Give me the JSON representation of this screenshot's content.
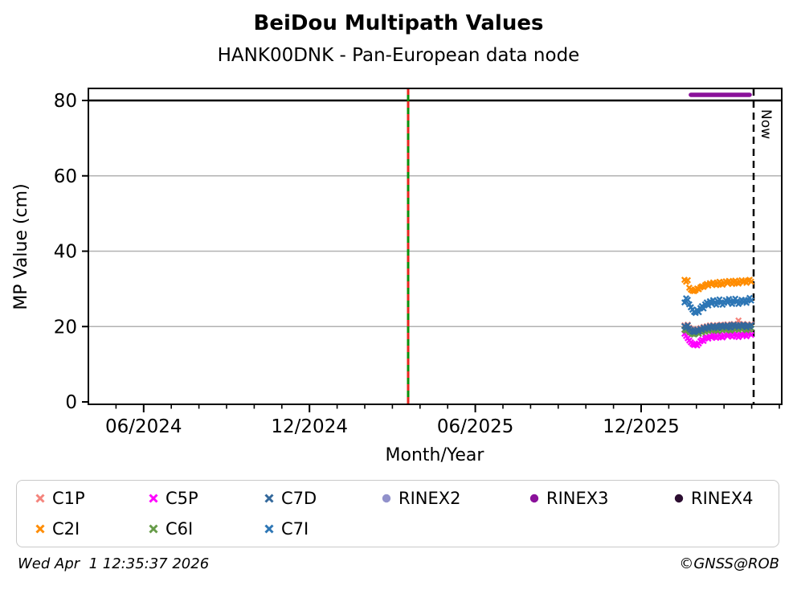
{
  "title": "BeiDou Multipath Values",
  "subtitle": "HANK00DNK - Pan-European data node",
  "now_label": "Now",
  "footer": {
    "timestamp": "Wed Apr  1 12:35:37 2026",
    "credit": "©GNSS@ROB"
  },
  "colors": {
    "grid": "#b2b2b2",
    "spine": "#000000",
    "threshold": "#000000",
    "vertical_marker_green": "#0a8f0a",
    "vertical_marker_red": "#e8251f",
    "now_line": "#000000"
  },
  "legend": {
    "items": [
      {
        "label": "C1P",
        "marker": "x",
        "color": "#f4847c"
      },
      {
        "label": "C5P",
        "marker": "x",
        "color": "#ff00ff"
      },
      {
        "label": "C7D",
        "marker": "x",
        "color": "#33689b"
      },
      {
        "label": "RINEX2",
        "marker": "circle",
        "color": "#9191cb"
      },
      {
        "label": "RINEX3",
        "marker": "circle",
        "color": "#8a119a"
      },
      {
        "label": "RINEX4",
        "marker": "circle",
        "color": "#2c0e31"
      },
      {
        "label": "C2I",
        "marker": "x",
        "color": "#ff8c00"
      },
      {
        "label": "C6I",
        "marker": "x",
        "color": "#669b48"
      },
      {
        "label": "C7I",
        "marker": "x",
        "color": "#2d76b5"
      }
    ]
  },
  "chart_data": {
    "type": "scatter",
    "title": "BeiDou Multipath Values",
    "subtitle": "HANK00DNK - Pan-European data node",
    "xlabel": "Month/Year",
    "ylabel": "MP Value (cm)",
    "ylim": [
      0,
      83
    ],
    "y_ticks": [
      0,
      20,
      40,
      60,
      80
    ],
    "grid_y": [
      20,
      40,
      60
    ],
    "threshold_line_y": 80,
    "x_ticks_major": [
      {
        "label": "06/2024",
        "month_index": 2
      },
      {
        "label": "12/2024",
        "month_index": 8
      },
      {
        "label": "06/2025",
        "month_index": 14
      },
      {
        "label": "12/2025",
        "month_index": 20
      }
    ],
    "x_axis_start_month": "04/2024",
    "x_minor_tick_months": [
      1,
      2,
      3,
      4,
      5,
      6,
      7,
      8,
      9,
      10,
      11,
      12,
      13,
      14,
      15,
      16,
      17,
      18,
      19,
      20,
      21,
      22,
      23,
      24,
      25
    ],
    "vertical_marker_month_index": 11.57,
    "vertical_marker_date_est": "2025-03-18",
    "now_line_month_index": 24.07,
    "now_date": "2026-04-01",
    "series_start_date": "2026-02-18",
    "series_day_step": 1,
    "series": [
      {
        "name": "C1P",
        "marker": "x",
        "color": "#f4847c",
        "values": [
          20.3,
          19.9,
          20.5,
          19.7,
          19.3,
          18.9,
          18.7,
          19.0,
          19.4,
          18.9,
          19.6,
          19.3,
          19.9,
          19.6,
          20.1,
          19.7,
          20.3,
          19.9,
          20.4,
          20.0,
          20.2,
          19.8,
          20.3,
          20.5,
          20.0,
          20.4,
          20.1,
          20.6,
          20.2,
          19.9,
          20.4,
          20.7,
          20.2,
          20.5,
          21.6,
          20.6,
          20.3,
          20.7,
          20.4,
          20.0,
          20.5,
          20.2,
          20.6
        ]
      },
      {
        "name": "C2I",
        "marker": "x",
        "color": "#ff8c00",
        "values": [
          32.4,
          31.9,
          32.3,
          30.3,
          29.8,
          29.5,
          29.4,
          29.7,
          30.1,
          29.9,
          30.4,
          30.7,
          30.5,
          31.0,
          31.3,
          30.9,
          31.5,
          31.2,
          31.7,
          31.3,
          31.0,
          31.5,
          31.9,
          31.4,
          31.1,
          31.6,
          32.0,
          31.5,
          32.1,
          31.7,
          31.3,
          31.8,
          32.2,
          31.7,
          31.4,
          31.9,
          32.3,
          31.8,
          32.1,
          31.6,
          32.2,
          32.4,
          31.9
        ]
      },
      {
        "name": "C5P",
        "marker": "x",
        "color": "#ff00ff",
        "values": [
          18.1,
          17.5,
          16.9,
          16.3,
          15.8,
          15.4,
          15.1,
          15.3,
          15.0,
          15.5,
          16.1,
          16.5,
          16.2,
          16.9,
          17.2,
          16.8,
          17.4,
          17.1,
          17.7,
          17.3,
          17.0,
          17.5,
          17.9,
          17.4,
          17.1,
          17.6,
          18.0,
          17.5,
          18.1,
          17.7,
          17.3,
          17.8,
          18.2,
          17.6,
          17.2,
          17.7,
          18.1,
          17.6,
          17.9,
          17.4,
          18.0,
          18.3,
          17.8
        ]
      },
      {
        "name": "C6I",
        "marker": "x",
        "color": "#669b48",
        "values": [
          19.2,
          18.9,
          19.4,
          18.7,
          18.4,
          18.1,
          17.9,
          18.2,
          18.5,
          18.1,
          18.7,
          18.4,
          18.9,
          18.6,
          19.1,
          18.8,
          19.3,
          18.9,
          19.4,
          19.0,
          19.2,
          18.8,
          19.3,
          19.5,
          19.0,
          19.4,
          19.1,
          19.6,
          19.2,
          18.9,
          19.4,
          19.7,
          19.2,
          19.5,
          19.1,
          19.6,
          19.3,
          19.7,
          19.4,
          19.0,
          19.5,
          19.2,
          19.6
        ]
      },
      {
        "name": "C7D",
        "marker": "x",
        "color": "#33689b",
        "values": [
          20.1,
          19.7,
          20.3,
          19.5,
          19.1,
          18.7,
          18.5,
          18.8,
          19.2,
          18.7,
          19.4,
          19.1,
          19.7,
          19.4,
          19.9,
          19.5,
          20.1,
          19.7,
          20.2,
          19.8,
          20.0,
          19.6,
          20.1,
          20.3,
          19.8,
          20.2,
          19.9,
          20.4,
          20.0,
          19.7,
          20.2,
          20.5,
          20.0,
          20.3,
          19.9,
          20.4,
          20.1,
          20.5,
          20.2,
          19.8,
          20.3,
          20.0,
          20.4
        ]
      },
      {
        "name": "C7I",
        "marker": "x",
        "color": "#2d76b5",
        "values": [
          26.4,
          27.5,
          27.1,
          25.9,
          25.1,
          24.5,
          23.9,
          23.6,
          24.4,
          23.8,
          24.9,
          25.4,
          24.8,
          25.9,
          26.4,
          25.6,
          26.7,
          26.1,
          27.0,
          26.3,
          25.8,
          26.7,
          27.2,
          26.4,
          25.8,
          26.3,
          27.0,
          26.4,
          27.3,
          26.6,
          26.0,
          26.8,
          27.4,
          26.6,
          26.0,
          26.5,
          27.1,
          26.5,
          27.0,
          26.3,
          27.0,
          27.6,
          26.9
        ]
      }
    ],
    "rinex3_line": {
      "name": "RINEX3",
      "color": "#8a119a",
      "value": 81.5,
      "start_day": 4,
      "end_day": 41
    },
    "legend_position": "below",
    "grid": true
  }
}
